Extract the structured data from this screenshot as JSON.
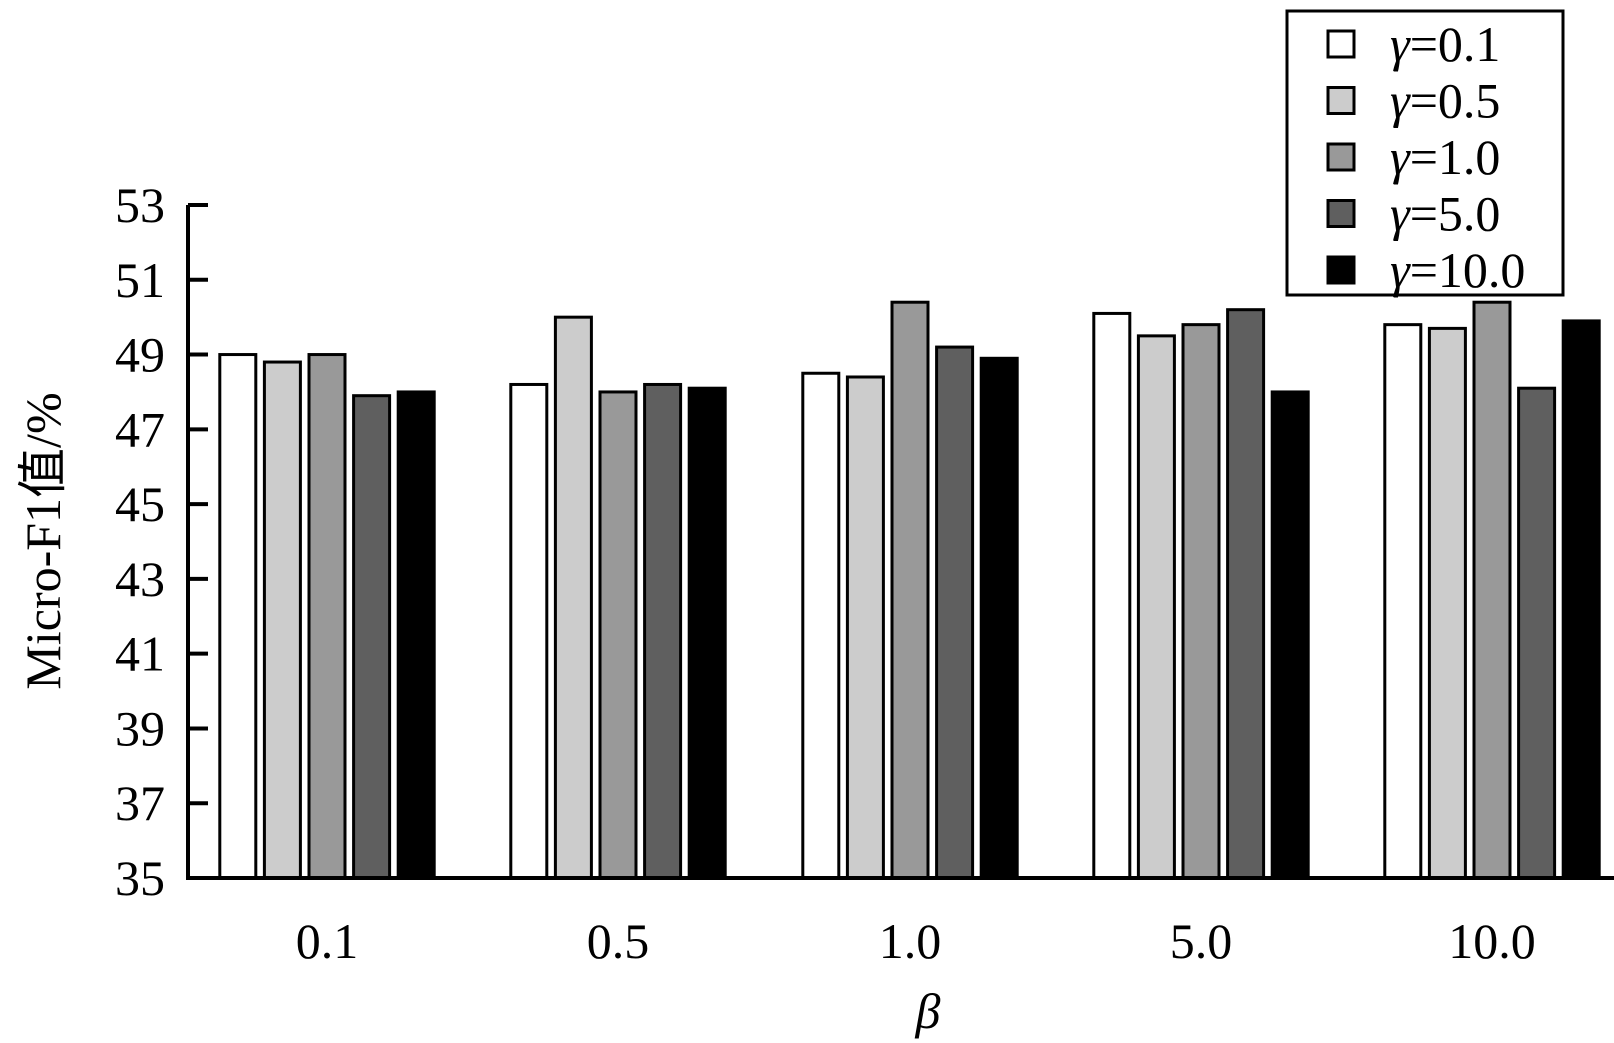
{
  "chart_data": {
    "type": "bar",
    "xlabel": "β",
    "ylabel": "Micro-F1值/%",
    "categories": [
      "0.1",
      "0.5",
      "1.0",
      "5.0",
      "10.0"
    ],
    "ylim": [
      35,
      53
    ],
    "yticks": [
      "35",
      "37",
      "39",
      "41",
      "43",
      "45",
      "47",
      "49",
      "51",
      "53"
    ],
    "grid": false,
    "legend_position": "top-right",
    "series": [
      {
        "name": "γ=0.1",
        "name_symbol": "γ",
        "name_value": "=0.1",
        "color": "#ffffff",
        "values": [
          49.0,
          48.2,
          48.5,
          50.1,
          49.8
        ]
      },
      {
        "name": "γ=0.5",
        "name_symbol": "γ",
        "name_value": "=0.5",
        "color": "#cccccc",
        "values": [
          48.8,
          50.0,
          48.4,
          49.5,
          49.7
        ]
      },
      {
        "name": "γ=1.0",
        "name_symbol": "γ",
        "name_value": "=1.0",
        "color": "#999999",
        "values": [
          49.0,
          48.0,
          50.4,
          49.8,
          50.4
        ]
      },
      {
        "name": "γ=5.0",
        "name_symbol": "γ",
        "name_value": "=5.0",
        "color": "#5f5f5f",
        "values": [
          47.9,
          48.2,
          49.2,
          50.2,
          48.1
        ]
      },
      {
        "name": "γ=10.0",
        "name_symbol": "γ",
        "name_value": "=10.0",
        "color": "#000000",
        "values": [
          48.0,
          48.1,
          48.9,
          48.0,
          49.9
        ]
      }
    ]
  }
}
